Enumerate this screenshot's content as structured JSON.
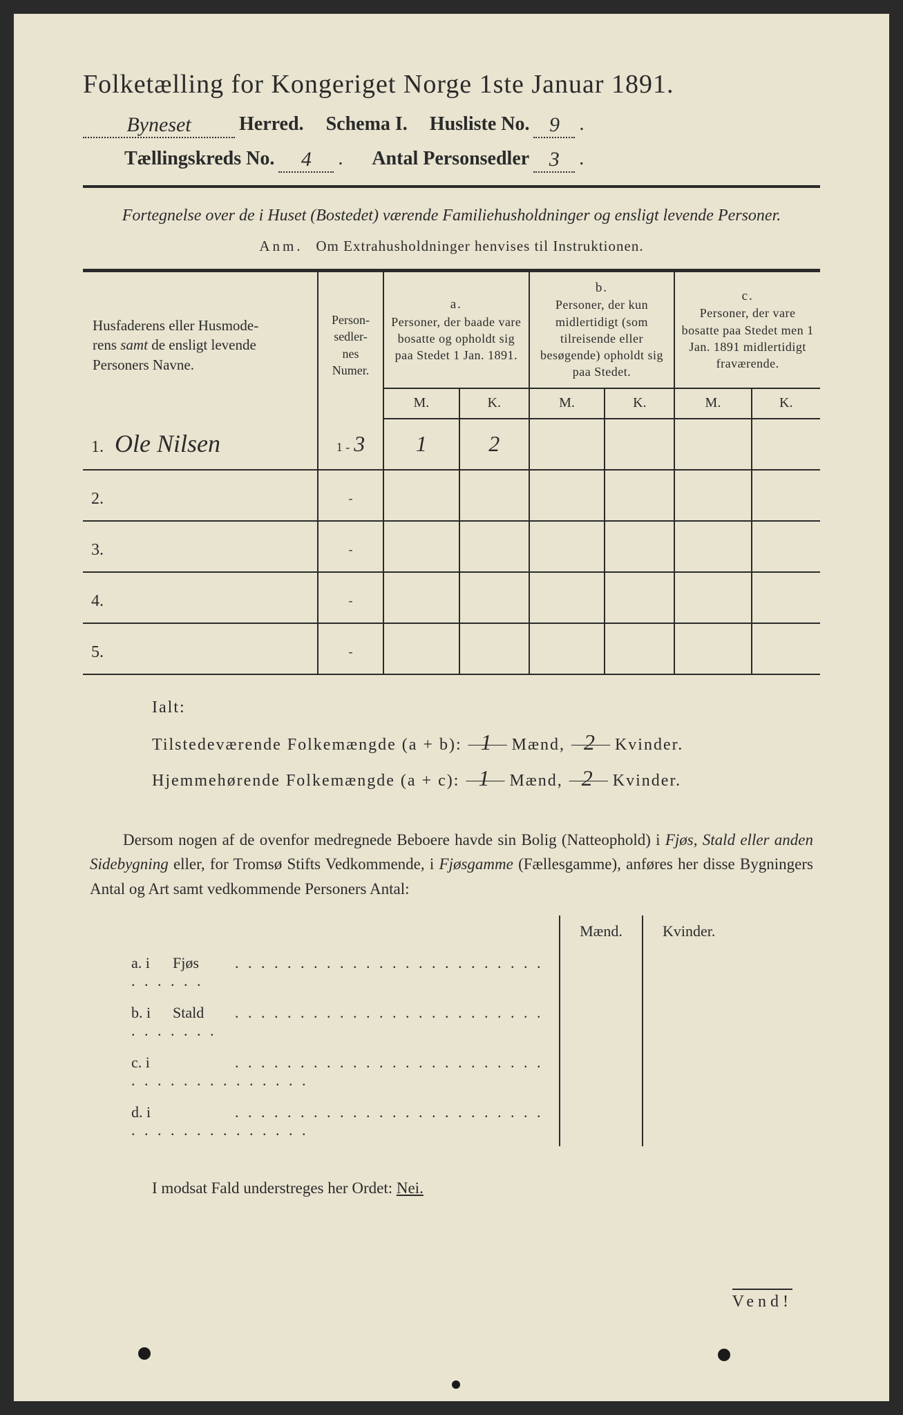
{
  "header": {
    "title": "Folketælling for Kongeriget Norge 1ste Januar 1891.",
    "herred_value": "Byneset",
    "herred_label": "Herred.",
    "schema_label": "Schema I.",
    "husliste_label": "Husliste No.",
    "husliste_value": "9",
    "kreds_label": "Tællingskreds No.",
    "kreds_value": "4",
    "antal_label": "Antal Personsedler",
    "antal_value": "3"
  },
  "subtitle": "Fortegnelse over de i Huset (Bostedet) værende Familiehusholdninger og ensligt levende Personer.",
  "anm_label": "Anm.",
  "anm_text": "Om Extrahusholdninger henvises til Instruktionen.",
  "table": {
    "col_names_header": "Husfaderens eller Husmoderens samt de ensligt levende Personers Navne.",
    "col_sedler_header": "Person-sedler-nes Numer.",
    "col_a_label": "a.",
    "col_a_text": "Personer, der baade vare bosatte og opholdt sig paa Stedet 1 Jan. 1891.",
    "col_b_label": "b.",
    "col_b_text": "Personer, der kun midlertidigt (som tilreisende eller besøgende) opholdt sig paa Stedet.",
    "col_c_label": "c.",
    "col_c_text": "Personer, der vare bosatte paa Stedet men 1 Jan. 1891 midlertidigt fraværende.",
    "m_label": "M.",
    "k_label": "K.",
    "rows": [
      {
        "n": "1.",
        "name": "Ole Nilsen",
        "sedler_prefix": "1 -",
        "sedler": "3",
        "a_m": "1",
        "a_k": "2",
        "b_m": "",
        "b_k": "",
        "c_m": "",
        "c_k": ""
      },
      {
        "n": "2.",
        "name": "",
        "sedler_prefix": "-",
        "sedler": "",
        "a_m": "",
        "a_k": "",
        "b_m": "",
        "b_k": "",
        "c_m": "",
        "c_k": ""
      },
      {
        "n": "3.",
        "name": "",
        "sedler_prefix": "-",
        "sedler": "",
        "a_m": "",
        "a_k": "",
        "b_m": "",
        "b_k": "",
        "c_m": "",
        "c_k": ""
      },
      {
        "n": "4.",
        "name": "",
        "sedler_prefix": "-",
        "sedler": "",
        "a_m": "",
        "a_k": "",
        "b_m": "",
        "b_k": "",
        "c_m": "",
        "c_k": ""
      },
      {
        "n": "5.",
        "name": "",
        "sedler_prefix": "-",
        "sedler": "",
        "a_m": "",
        "a_k": "",
        "b_m": "",
        "b_k": "",
        "c_m": "",
        "c_k": ""
      }
    ]
  },
  "ialt": {
    "title": "Ialt:",
    "line1_label": "Tilstedeværende Folkemængde (a + b):",
    "line2_label": "Hjemmehørende Folkemængde (a + c):",
    "maend": "Mænd,",
    "kvinder": "Kvinder.",
    "l1_m": "1",
    "l1_k": "2",
    "l2_m": "1",
    "l2_k": "2"
  },
  "paragraph": {
    "text_before_ital1": "Dersom nogen af de ovenfor medregnede Beboere havde sin Bolig (Natteophold) i ",
    "ital1": "Fjøs, Stald eller anden Sidebygning",
    "text_mid": " eller, for Tromsø Stifts Vedkommende, i ",
    "ital2": "Fjøsgamme",
    "text_paren": " (Fællesgamme), anføres her disse Bygningers Antal og Art samt vedkommende Personers Antal:"
  },
  "mk_header": {
    "m": "Mænd.",
    "k": "Kvinder."
  },
  "building_rows": [
    {
      "label": "a.  i",
      "name": "Fjøs",
      "dots": ". . . . . . . . . . . .    . . . . . . . . . . . . . . . . . ."
    },
    {
      "label": "b.  i",
      "name": "Stald",
      "dots": ". . . . . . . . . . . . . . . . . . . . . . . . . . . . . . ."
    },
    {
      "label": "c.  i",
      "name": "",
      "dots": ". . . . . . . . . . . . . . . . . . . . . . . . . . . . . . . . . . . . . ."
    },
    {
      "label": "d.  i",
      "name": "",
      "dots": ". . . . . . . . . . . . . . . . . . . . . . . . . . . . . . . . . . . . . ."
    }
  ],
  "nei_line": {
    "text": "I modsat Fald understreges her Ordet: ",
    "nei": "Nei."
  },
  "vend": "Vend!"
}
